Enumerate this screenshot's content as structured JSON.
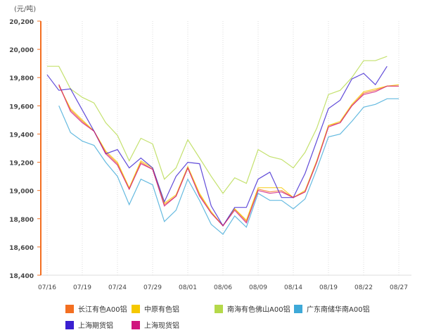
{
  "chart_data": {
    "type": "line",
    "unit_label": "(元/吨)",
    "ylim": [
      18400,
      20200
    ],
    "yticks": [
      18400,
      18600,
      18800,
      19000,
      19200,
      19400,
      19600,
      19800,
      20000,
      20200
    ],
    "ytick_labels": [
      "18,400",
      "18,600",
      "18,800",
      "19,000",
      "19,200",
      "19,400",
      "19,600",
      "19,800",
      "20,000",
      "20,200"
    ],
    "xtick_labels": [
      "07/16",
      "07/19",
      "07/24",
      "07/29",
      "08/01",
      "08/06",
      "08/09",
      "08/14",
      "08/19",
      "08/22",
      "08/27"
    ],
    "points_per_tick": 3,
    "grid": "vertical-dotted",
    "legend_position": "bottom",
    "series": [
      {
        "name": "长江有色A00铝",
        "color": "#f36f21",
        "values": [
          null,
          19750,
          19570,
          19490,
          19420,
          19270,
          19190,
          19010,
          19200,
          19150,
          18900,
          18960,
          19160,
          18970,
          18840,
          18750,
          18870,
          18780,
          19010,
          18990,
          19000,
          18950,
          18990,
          19200,
          19460,
          19480,
          19600,
          19690,
          19710,
          19740,
          19740
        ]
      },
      {
        "name": "中原有色铝",
        "color": "#f5c800",
        "values": [
          null,
          19740,
          19580,
          19500,
          19420,
          19280,
          19200,
          19020,
          19210,
          19160,
          18910,
          18970,
          19170,
          18980,
          18850,
          18750,
          18870,
          18790,
          19020,
          19020,
          19020,
          18950,
          19000,
          19210,
          19460,
          19490,
          19610,
          19700,
          19720,
          19740,
          19750
        ]
      },
      {
        "name": "南海有色佛山A00铝",
        "color": "#b5d94a",
        "values": [
          19880,
          19880,
          19720,
          19660,
          19620,
          19480,
          19390,
          19210,
          19370,
          19330,
          19080,
          19160,
          19360,
          19230,
          19100,
          18980,
          19090,
          19050,
          19290,
          19240,
          19220,
          19160,
          19270,
          19440,
          19680,
          19710,
          19800,
          19920,
          19920,
          19950,
          null
        ]
      },
      {
        "name": "广东南储华南A00铝",
        "color": "#3ea9d8",
        "values": [
          null,
          19600,
          19410,
          19350,
          19320,
          19200,
          19100,
          18900,
          19080,
          19040,
          18780,
          18860,
          19080,
          18930,
          18760,
          18690,
          18820,
          18740,
          18980,
          18930,
          18930,
          18870,
          18940,
          19150,
          19380,
          19400,
          19490,
          19590,
          19610,
          19650,
          19650
        ]
      },
      {
        "name": "上海期货铝",
        "color": "#3a1fd0",
        "values": [
          19820,
          19710,
          19720,
          19570,
          19420,
          19260,
          19290,
          19160,
          19230,
          19160,
          18920,
          19100,
          19200,
          19190,
          18890,
          18750,
          18880,
          18880,
          19080,
          19130,
          18950,
          18950,
          19120,
          19350,
          19580,
          19640,
          19790,
          19830,
          19750,
          19880,
          null
        ]
      },
      {
        "name": "上海现货铝",
        "color": "#d0167e",
        "values": [
          null,
          19750,
          19560,
          19480,
          19420,
          19260,
          19180,
          19010,
          19190,
          19150,
          18890,
          18960,
          19160,
          18960,
          18840,
          18750,
          18860,
          18770,
          19000,
          18980,
          18990,
          18950,
          18990,
          19200,
          19450,
          19480,
          19600,
          19680,
          19700,
          19740,
          19740
        ]
      }
    ]
  }
}
